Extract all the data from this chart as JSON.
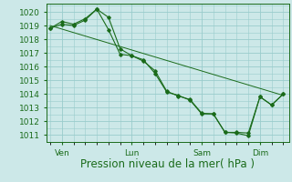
{
  "background_color": "#cce8e8",
  "grid_color": "#99cccc",
  "line_color": "#1a6b1a",
  "ylabel": "Pression niveau de la mer( hPa )",
  "ylim": [
    1010.5,
    1020.6
  ],
  "yticks": [
    1011,
    1012,
    1013,
    1014,
    1015,
    1016,
    1017,
    1018,
    1019,
    1020
  ],
  "xtick_labels": [
    "Ven",
    "Lun",
    "Sam",
    "Dim"
  ],
  "xtick_positions": [
    1,
    7,
    13,
    18
  ],
  "series1_x": [
    0,
    1,
    2,
    3,
    4,
    5,
    6,
    7,
    8,
    9,
    10,
    11,
    12,
    13,
    14,
    15,
    16,
    17,
    18,
    19,
    20
  ],
  "series1_y": [
    1018.8,
    1019.3,
    1019.1,
    1019.5,
    1020.2,
    1018.7,
    1016.9,
    1016.8,
    1016.5,
    1015.5,
    1014.15,
    1013.9,
    1013.55,
    1012.55,
    1012.55,
    1011.2,
    1011.2,
    1011.15,
    1013.8,
    1013.2,
    1014.0
  ],
  "series2_x": [
    0,
    1,
    2,
    3,
    4,
    5,
    6,
    7,
    8,
    9,
    10,
    11,
    12,
    13,
    14,
    15,
    16,
    17,
    18,
    19,
    20
  ],
  "series2_y": [
    1018.8,
    1019.1,
    1019.0,
    1019.4,
    1020.2,
    1019.6,
    1017.3,
    1016.8,
    1016.4,
    1015.7,
    1014.2,
    1013.85,
    1013.6,
    1012.6,
    1012.55,
    1011.2,
    1011.15,
    1010.95,
    1013.8,
    1013.2,
    1014.0
  ],
  "trend_x": [
    0,
    20
  ],
  "trend_y": [
    1019.0,
    1013.9
  ],
  "xlabel_fontsize": 8.5,
  "tick_fontsize": 6.5,
  "xlim": [
    -0.3,
    20.5
  ]
}
